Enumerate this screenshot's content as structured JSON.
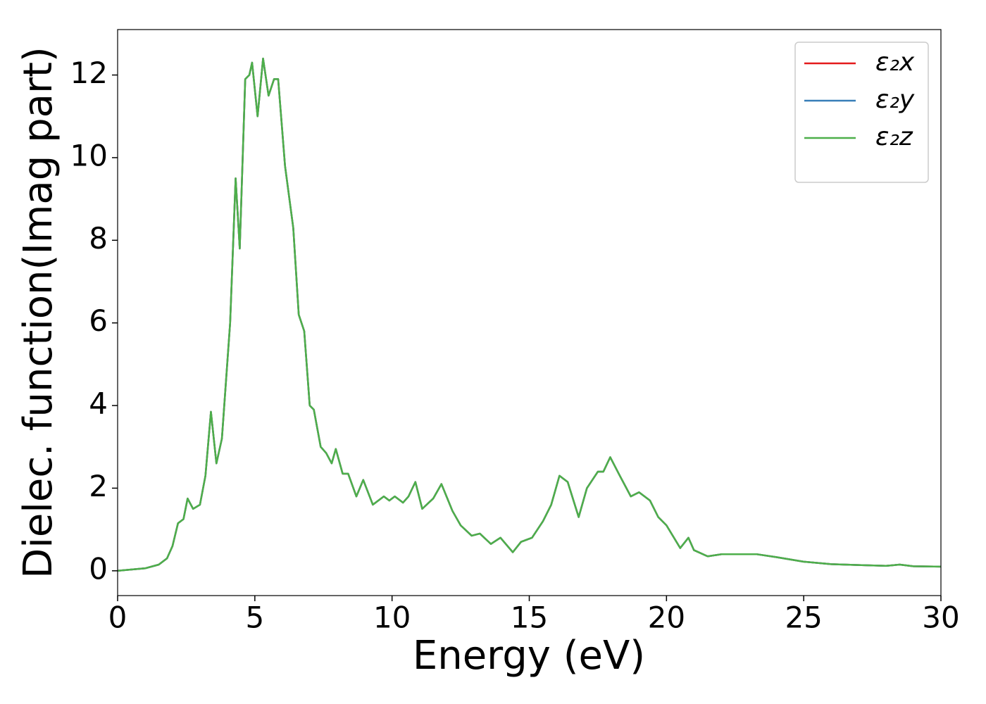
{
  "chart_data": {
    "type": "line",
    "xlabel": "Energy (eV)",
    "ylabel": "Dielec. function(Imag part)",
    "x": [
      0,
      1.0,
      1.5,
      1.8,
      2.0,
      2.2,
      2.4,
      2.55,
      2.75,
      3.0,
      3.2,
      3.4,
      3.6,
      3.8,
      4.1,
      4.3,
      4.45,
      4.65,
      4.8,
      4.9,
      5.1,
      5.3,
      5.5,
      5.7,
      5.85,
      6.1,
      6.4,
      6.6,
      6.8,
      7.0,
      7.15,
      7.4,
      7.6,
      7.8,
      7.95,
      8.2,
      8.4,
      8.7,
      8.95,
      9.3,
      9.7,
      9.9,
      10.1,
      10.4,
      10.6,
      10.85,
      11.1,
      11.5,
      11.8,
      12.2,
      12.5,
      12.9,
      13.2,
      13.6,
      13.95,
      14.4,
      14.7,
      15.1,
      15.5,
      15.8,
      16.1,
      16.4,
      16.8,
      17.1,
      17.5,
      17.7,
      17.95,
      18.3,
      18.7,
      19.0,
      19.4,
      19.7,
      20.0,
      20.5,
      20.8,
      21.0,
      21.5,
      22.0,
      22.5,
      23.3,
      24.0,
      25.0,
      26.0,
      27.0,
      28.0,
      28.5,
      29.0,
      30.0
    ],
    "series": [
      {
        "name": "ε₂x",
        "color": "#e41a1c",
        "values": [
          0,
          0.06,
          0.15,
          0.3,
          0.6,
          1.15,
          1.25,
          1.75,
          1.5,
          1.6,
          2.3,
          3.85,
          2.6,
          3.2,
          6.0,
          9.5,
          7.8,
          11.9,
          12.0,
          12.3,
          11.0,
          12.4,
          11.5,
          11.9,
          11.9,
          9.8,
          8.3,
          6.2,
          5.8,
          4.0,
          3.9,
          3.0,
          2.85,
          2.6,
          2.95,
          2.35,
          2.35,
          1.8,
          2.2,
          1.6,
          1.8,
          1.7,
          1.8,
          1.65,
          1.8,
          2.15,
          1.5,
          1.75,
          2.1,
          1.45,
          1.1,
          0.85,
          0.9,
          0.65,
          0.8,
          0.45,
          0.7,
          0.8,
          1.2,
          1.6,
          2.3,
          2.15,
          1.3,
          2.0,
          2.4,
          2.4,
          2.75,
          2.3,
          1.8,
          1.9,
          1.7,
          1.3,
          1.1,
          0.55,
          0.8,
          0.5,
          0.35,
          0.4,
          0.4,
          0.4,
          0.33,
          0.22,
          0.16,
          0.14,
          0.12,
          0.15,
          0.11,
          0.1
        ]
      },
      {
        "name": "ε₂y",
        "color": "#377eb8",
        "values": [
          0,
          0.06,
          0.15,
          0.3,
          0.6,
          1.15,
          1.25,
          1.75,
          1.5,
          1.6,
          2.3,
          3.85,
          2.6,
          3.2,
          6.0,
          9.5,
          7.8,
          11.9,
          12.0,
          12.3,
          11.0,
          12.4,
          11.5,
          11.9,
          11.9,
          9.8,
          8.3,
          6.2,
          5.8,
          4.0,
          3.9,
          3.0,
          2.85,
          2.6,
          2.95,
          2.35,
          2.35,
          1.8,
          2.2,
          1.6,
          1.8,
          1.7,
          1.8,
          1.65,
          1.8,
          2.15,
          1.5,
          1.75,
          2.1,
          1.45,
          1.1,
          0.85,
          0.9,
          0.65,
          0.8,
          0.45,
          0.7,
          0.8,
          1.2,
          1.6,
          2.3,
          2.15,
          1.3,
          2.0,
          2.4,
          2.4,
          2.75,
          2.3,
          1.8,
          1.9,
          1.7,
          1.3,
          1.1,
          0.55,
          0.8,
          0.5,
          0.35,
          0.4,
          0.4,
          0.4,
          0.33,
          0.22,
          0.16,
          0.14,
          0.12,
          0.15,
          0.11,
          0.1
        ]
      },
      {
        "name": "ε₂z",
        "color": "#4daf4a",
        "values": [
          0,
          0.06,
          0.15,
          0.3,
          0.6,
          1.15,
          1.25,
          1.75,
          1.5,
          1.6,
          2.3,
          3.85,
          2.6,
          3.2,
          6.0,
          9.5,
          7.8,
          11.9,
          12.0,
          12.3,
          11.0,
          12.4,
          11.5,
          11.9,
          11.9,
          9.8,
          8.3,
          6.2,
          5.8,
          4.0,
          3.9,
          3.0,
          2.85,
          2.6,
          2.95,
          2.35,
          2.35,
          1.8,
          2.2,
          1.6,
          1.8,
          1.7,
          1.8,
          1.65,
          1.8,
          2.15,
          1.5,
          1.75,
          2.1,
          1.45,
          1.1,
          0.85,
          0.9,
          0.65,
          0.8,
          0.45,
          0.7,
          0.8,
          1.2,
          1.6,
          2.3,
          2.15,
          1.3,
          2.0,
          2.4,
          2.4,
          2.75,
          2.3,
          1.8,
          1.9,
          1.7,
          1.3,
          1.1,
          0.55,
          0.8,
          0.5,
          0.35,
          0.4,
          0.4,
          0.4,
          0.33,
          0.22,
          0.16,
          0.14,
          0.12,
          0.15,
          0.11,
          0.1
        ]
      }
    ],
    "xlim": [
      0,
      30
    ],
    "xticks": [
      0,
      5,
      10,
      15,
      20,
      25,
      30
    ],
    "ylim": [
      -0.6,
      13.1
    ],
    "yticks": [
      0,
      2,
      4,
      6,
      8,
      10,
      12
    ],
    "grid": false,
    "legend": "upper right"
  }
}
